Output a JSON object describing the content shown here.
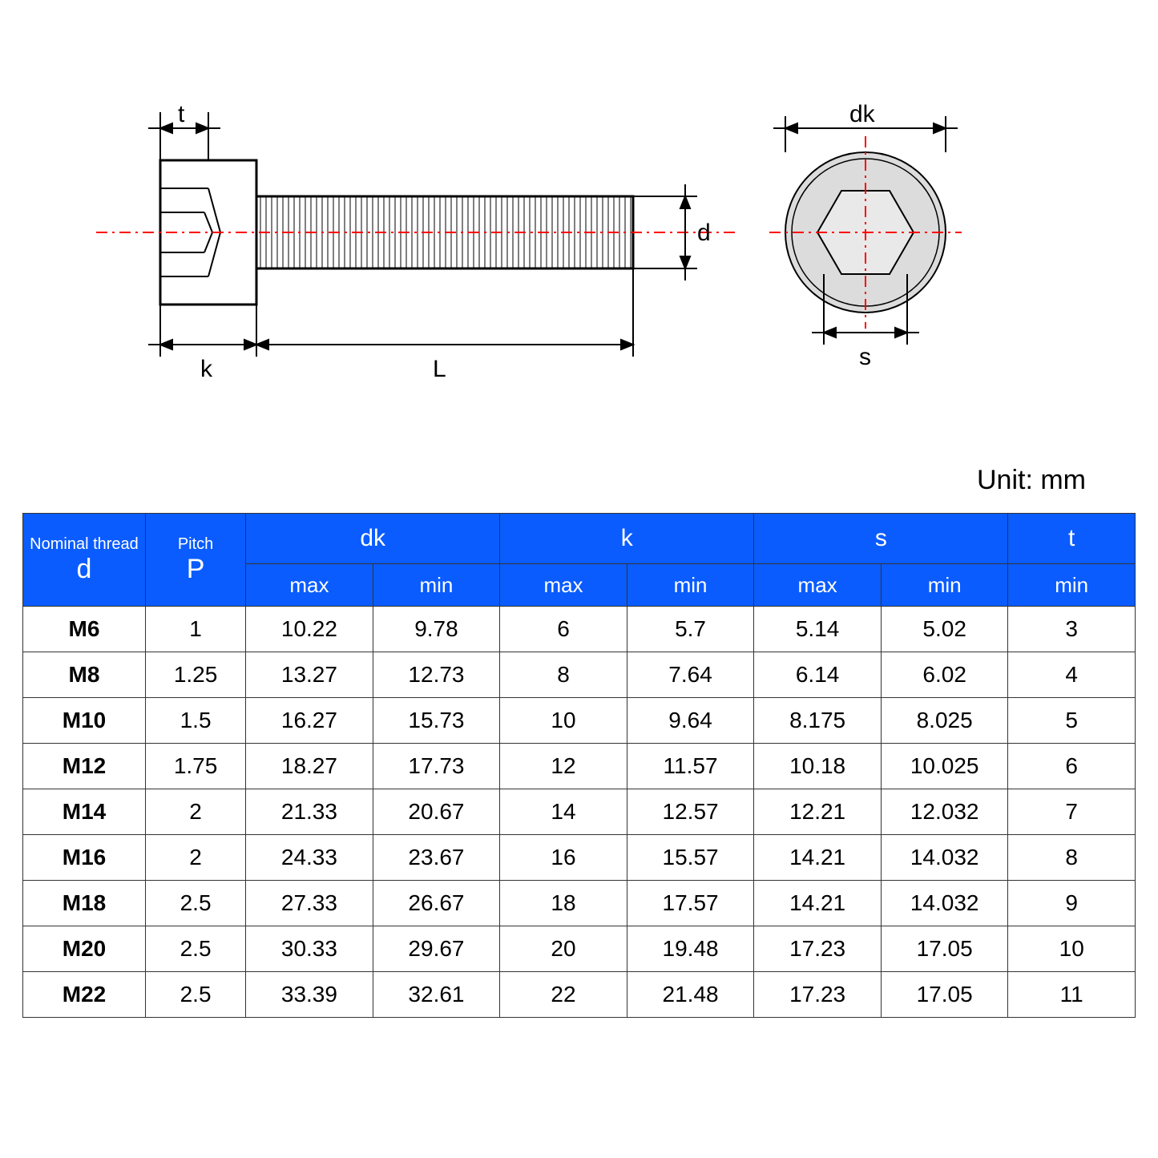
{
  "unit_label": "Unit: mm",
  "diagram_labels": {
    "t": "t",
    "k": "k",
    "L": "L",
    "d": "d",
    "dk": "dk",
    "s": "s"
  },
  "table": {
    "header_bg": "#0a5cff",
    "header_fg": "#ffffff",
    "border_color": "#333333",
    "columns_top": [
      {
        "label_small": "Nominal thread",
        "label_big": "d",
        "span": 1
      },
      {
        "label_small": "Pitch",
        "label_big": "P",
        "span": 1
      },
      {
        "label_big": "dk",
        "span": 2
      },
      {
        "label_big": "k",
        "span": 2
      },
      {
        "label_big": "s",
        "span": 2
      },
      {
        "label_big": "t",
        "span": 1
      }
    ],
    "columns_sub": [
      "max",
      "min",
      "max",
      "min",
      "max",
      "min",
      "min"
    ],
    "rows": [
      [
        "M6",
        "1",
        "10.22",
        "9.78",
        "6",
        "5.7",
        "5.14",
        "5.02",
        "3"
      ],
      [
        "M8",
        "1.25",
        "13.27",
        "12.73",
        "8",
        "7.64",
        "6.14",
        "6.02",
        "4"
      ],
      [
        "M10",
        "1.5",
        "16.27",
        "15.73",
        "10",
        "9.64",
        "8.175",
        "8.025",
        "5"
      ],
      [
        "M12",
        "1.75",
        "18.27",
        "17.73",
        "12",
        "11.57",
        "10.18",
        "10.025",
        "6"
      ],
      [
        "M14",
        "2",
        "21.33",
        "20.67",
        "14",
        "12.57",
        "12.21",
        "12.032",
        "7"
      ],
      [
        "M16",
        "2",
        "24.33",
        "23.67",
        "16",
        "15.57",
        "14.21",
        "14.032",
        "8"
      ],
      [
        "M18",
        "2.5",
        "27.33",
        "26.67",
        "18",
        "17.57",
        "14.21",
        "14.032",
        "9"
      ],
      [
        "M20",
        "2.5",
        "30.33",
        "29.67",
        "20",
        "19.48",
        "17.23",
        "17.05",
        "10"
      ],
      [
        "M22",
        "2.5",
        "33.39",
        "32.61",
        "22",
        "21.48",
        "17.23",
        "17.05",
        "11"
      ]
    ]
  }
}
